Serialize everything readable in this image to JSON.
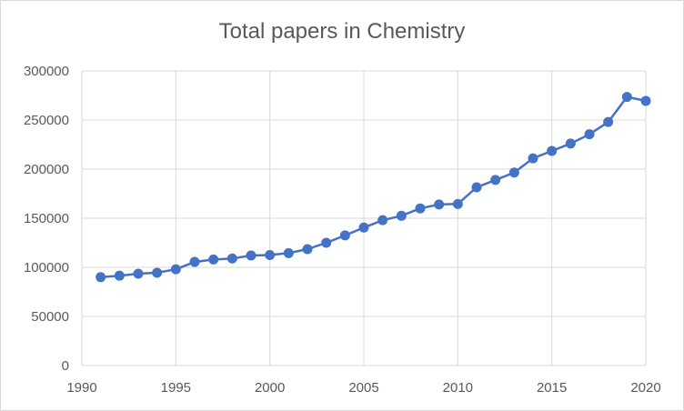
{
  "chart_data": {
    "type": "line",
    "title": "Total papers in Chemistry",
    "xlabel": "",
    "ylabel": "",
    "xlim": [
      1990,
      2020
    ],
    "ylim": [
      0,
      300000
    ],
    "x_ticks": [
      "1990",
      "1995",
      "2000",
      "2005",
      "2010",
      "2015",
      "2020"
    ],
    "y_ticks": [
      "0",
      "50000",
      "100000",
      "150000",
      "200000",
      "250000",
      "300000"
    ],
    "grid": true,
    "legend": "none",
    "series": [
      {
        "color": "#4472c4",
        "x": [
          1991,
          1992,
          1993,
          1994,
          1995,
          1996,
          1997,
          1998,
          1999,
          2000,
          2001,
          2002,
          2003,
          2004,
          2005,
          2006,
          2007,
          2008,
          2009,
          2010,
          2011,
          2012,
          2013,
          2014,
          2015,
          2016,
          2017,
          2018,
          2019,
          2020
        ],
        "y": [
          90000,
          91500,
          93500,
          94500,
          98000,
          105500,
          108000,
          109000,
          112000,
          112500,
          114500,
          118500,
          125000,
          132500,
          140500,
          148000,
          152500,
          160000,
          164000,
          164500,
          181500,
          189000,
          196500,
          211000,
          218500,
          226000,
          235500,
          248000,
          273500,
          269500
        ]
      }
    ]
  }
}
